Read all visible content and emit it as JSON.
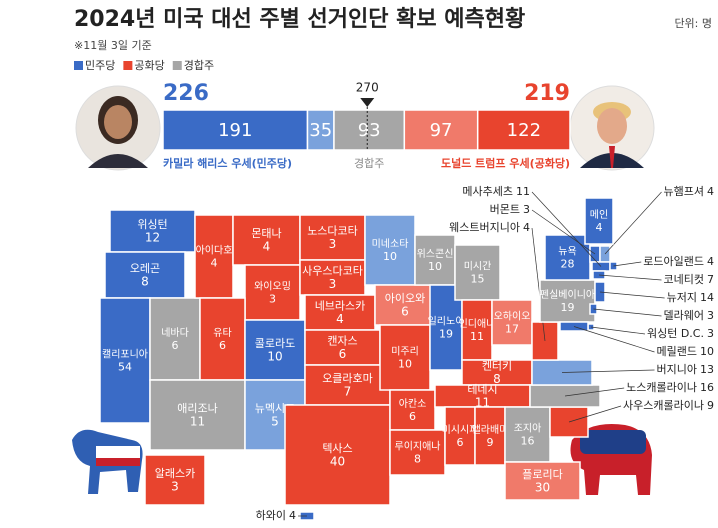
{
  "title": "2024년 미국 대선 주별 선거인단 확보 예측현황",
  "unit": "단위: 명",
  "note": "※11월 3일 기준",
  "legend": [
    {
      "label": "민주당",
      "color": "#3a6bc6"
    },
    {
      "label": "공화당",
      "color": "#e8442e"
    },
    {
      "label": "경합주",
      "color": "#a6a6a6"
    }
  ],
  "chart_data": {
    "type": "stacked-bar",
    "xlim": [
      0,
      538
    ],
    "threshold": 270,
    "segments": [
      {
        "value": 191,
        "color": "#3a6bc6"
      },
      {
        "value": 35,
        "color": "#7aa2dc"
      },
      {
        "value": 93,
        "color": "#a6a6a6"
      },
      {
        "value": 97,
        "color": "#f07a6a"
      },
      {
        "value": 122,
        "color": "#e8442e"
      }
    ],
    "totals": [
      {
        "value": 226,
        "color": "#3a6bc6"
      },
      {
        "value": 219,
        "color": "#e8442e"
      }
    ],
    "labels": [
      "카밀라 해리스 우세(민주당)",
      "경합주",
      "도널드 트럼프 우세(공화당)"
    ]
  },
  "map": {
    "states": [
      {
        "name": "위싱턴",
        "votes": 12,
        "color": "#3a6bc6"
      },
      {
        "name": "오레곤",
        "votes": 8,
        "color": "#3a6bc6"
      },
      {
        "name": "캘리포니아",
        "votes": 54,
        "color": "#3a6bc6"
      },
      {
        "name": "네바다",
        "votes": 6,
        "color": "#a6a6a6"
      },
      {
        "name": "아이다호",
        "votes": 4,
        "color": "#e8442e"
      },
      {
        "name": "몬태나",
        "votes": 4,
        "color": "#e8442e"
      },
      {
        "name": "와이오밍",
        "votes": 3,
        "color": "#e8442e"
      },
      {
        "name": "유타",
        "votes": 6,
        "color": "#e8442e"
      },
      {
        "name": "콜로라도",
        "votes": 10,
        "color": "#3a6bc6"
      },
      {
        "name": "애리조나",
        "votes": 11,
        "color": "#a6a6a6"
      },
      {
        "name": "뉴멕시코",
        "votes": 5,
        "color": "#7aa2dc"
      },
      {
        "name": "노스다코타",
        "votes": 3,
        "color": "#e8442e"
      },
      {
        "name": "사우스다코타",
        "votes": 3,
        "color": "#e8442e"
      },
      {
        "name": "네브라스카",
        "votes": 4,
        "color": "#e8442e"
      },
      {
        "name": "캔자스",
        "votes": 6,
        "color": "#e8442e"
      },
      {
        "name": "오클라호마",
        "votes": 7,
        "color": "#e8442e"
      },
      {
        "name": "텍사스",
        "votes": 40,
        "color": "#e8442e"
      },
      {
        "name": "미네소타",
        "votes": 10,
        "color": "#7aa2dc"
      },
      {
        "name": "아이오와",
        "votes": 6,
        "color": "#f07a6a"
      },
      {
        "name": "미주리",
        "votes": 10,
        "color": "#e8442e"
      },
      {
        "name": "아칸소",
        "votes": 6,
        "color": "#e8442e"
      },
      {
        "name": "루이지애나",
        "votes": 8,
        "color": "#e8442e"
      },
      {
        "name": "위스콘신",
        "votes": 10,
        "color": "#a6a6a6"
      },
      {
        "name": "일리노이",
        "votes": 19,
        "color": "#3a6bc6"
      },
      {
        "name": "미시간",
        "votes": 15,
        "color": "#a6a6a6"
      },
      {
        "name": "인디애나",
        "votes": 11,
        "color": "#e8442e"
      },
      {
        "name": "오하이오",
        "votes": 17,
        "color": "#f07a6a"
      },
      {
        "name": "켄터키",
        "votes": 8,
        "color": "#e8442e"
      },
      {
        "name": "테네시",
        "votes": 11,
        "color": "#e8442e"
      },
      {
        "name": "미시시피",
        "votes": 6,
        "color": "#e8442e"
      },
      {
        "name": "앨라배마",
        "votes": 9,
        "color": "#e8442e"
      },
      {
        "name": "조지아",
        "votes": 16,
        "color": "#a6a6a6"
      },
      {
        "name": "플로리다",
        "votes": 30,
        "color": "#f07a6a"
      },
      {
        "name": "사우스캐롤라이나",
        "votes": 9,
        "color": "#e8442e"
      },
      {
        "name": "노스캐롤라이나",
        "votes": 16,
        "color": "#a6a6a6"
      },
      {
        "name": "버지니아",
        "votes": 13,
        "color": "#7aa2dc"
      },
      {
        "name": "웨스트버지니아",
        "votes": 4,
        "color": "#e8442e"
      },
      {
        "name": "펜실베이니아",
        "votes": 19,
        "color": "#a6a6a6"
      },
      {
        "name": "뉴욕",
        "votes": 28,
        "color": "#3a6bc6"
      },
      {
        "name": "버몬트",
        "votes": 3,
        "color": "#3a6bc6"
      },
      {
        "name": "뉴햄프셔",
        "votes": 4,
        "color": "#7aa2dc"
      },
      {
        "name": "메인",
        "votes": 4,
        "color": "#3a6bc6"
      },
      {
        "name": "메사추세츠",
        "votes": 11,
        "color": "#3a6bc6"
      },
      {
        "name": "로드아일랜드",
        "votes": 4,
        "color": "#3a6bc6"
      },
      {
        "name": "코네티컷",
        "votes": 7,
        "color": "#3a6bc6"
      },
      {
        "name": "뉴저지",
        "votes": 14,
        "color": "#3a6bc6"
      },
      {
        "name": "델라웨어",
        "votes": 3,
        "color": "#3a6bc6"
      },
      {
        "name": "워싱턴 D.C.",
        "votes": 3,
        "color": "#3a6bc6"
      },
      {
        "name": "메릴랜드",
        "votes": 10,
        "color": "#3a6bc6"
      },
      {
        "name": "알래스카",
        "votes": 3,
        "color": "#e8442e"
      },
      {
        "name": "하와이",
        "votes": 4,
        "color": "#3a6bc6"
      }
    ]
  }
}
